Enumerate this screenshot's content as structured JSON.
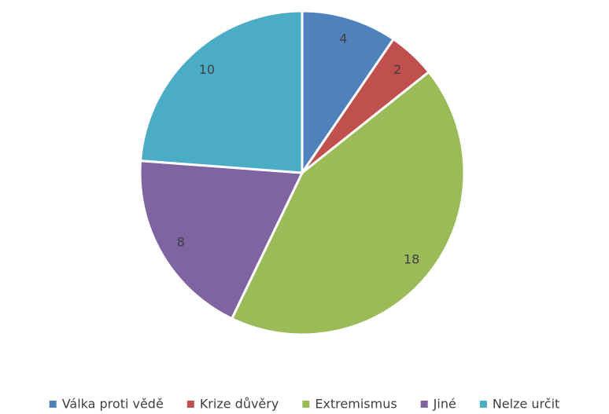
{
  "chart_data": {
    "type": "pie",
    "categories": [
      "Válka proti vědě",
      "Krize důvěry",
      "Extremismus",
      "Jiné",
      "Nelze určit"
    ],
    "values": [
      4,
      2,
      18,
      8,
      10
    ],
    "colors": [
      "#4f81bd",
      "#c0504d",
      "#9bbb59",
      "#8064a2",
      "#4bacc6"
    ],
    "legend": "bottom"
  }
}
